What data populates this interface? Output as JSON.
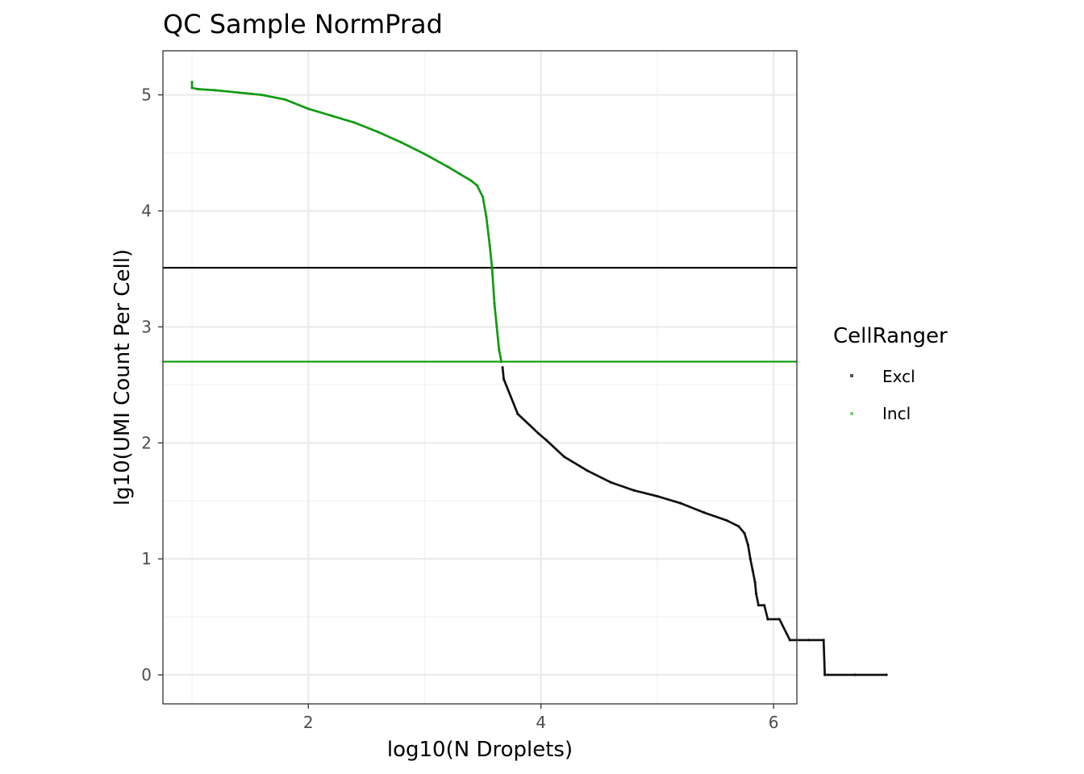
{
  "chart_data": {
    "type": "scatter",
    "title": "QC Sample NormPrad",
    "xlabel": "log10(N Droplets)",
    "ylabel": "lg10(UMI Count Per Cell)",
    "xlim": [
      0.75,
      6.2
    ],
    "ylim": [
      -0.25,
      5.38
    ],
    "x_ticks": [
      2,
      4,
      6
    ],
    "y_ticks": [
      0,
      1,
      2,
      3,
      4,
      5
    ],
    "grid": true,
    "legend": {
      "title": "CellRanger",
      "placement": "right",
      "entries": [
        {
          "label": "Excl",
          "color": "#555555"
        },
        {
          "label": "Incl",
          "color": "#7fd07f"
        }
      ]
    },
    "hlines": [
      {
        "y": 3.51,
        "color": "#000000"
      },
      {
        "y": 2.7,
        "color": "#0a9a0a"
      }
    ],
    "series": [
      {
        "name": "Incl",
        "color": "#129a12",
        "points": [
          [
            1.0,
            5.11
          ],
          [
            1.0,
            5.06
          ],
          [
            1.05,
            5.05
          ],
          [
            1.2,
            5.04
          ],
          [
            1.4,
            5.02
          ],
          [
            1.6,
            5.0
          ],
          [
            1.8,
            4.96
          ],
          [
            2.0,
            4.88
          ],
          [
            2.2,
            4.82
          ],
          [
            2.4,
            4.76
          ],
          [
            2.6,
            4.68
          ],
          [
            2.8,
            4.59
          ],
          [
            3.0,
            4.49
          ],
          [
            3.2,
            4.38
          ],
          [
            3.3,
            4.32
          ],
          [
            3.4,
            4.26
          ],
          [
            3.45,
            4.22
          ],
          [
            3.5,
            4.12
          ],
          [
            3.53,
            3.95
          ],
          [
            3.56,
            3.7
          ],
          [
            3.58,
            3.5
          ],
          [
            3.6,
            3.2
          ],
          [
            3.62,
            3.0
          ],
          [
            3.64,
            2.8
          ],
          [
            3.66,
            2.7
          ]
        ]
      },
      {
        "name": "Excl",
        "color": "#111111",
        "points": [
          [
            3.67,
            2.65
          ],
          [
            3.68,
            2.55
          ],
          [
            3.8,
            2.25
          ],
          [
            3.98,
            2.08
          ],
          [
            4.05,
            2.02
          ],
          [
            4.2,
            1.88
          ],
          [
            4.4,
            1.76
          ],
          [
            4.6,
            1.66
          ],
          [
            4.8,
            1.59
          ],
          [
            5.0,
            1.54
          ],
          [
            5.2,
            1.48
          ],
          [
            5.4,
            1.4
          ],
          [
            5.6,
            1.33
          ],
          [
            5.7,
            1.28
          ],
          [
            5.75,
            1.22
          ],
          [
            5.78,
            1.12
          ],
          [
            5.8,
            1.0
          ],
          [
            5.82,
            0.9
          ],
          [
            5.84,
            0.8
          ],
          [
            5.85,
            0.7
          ],
          [
            5.87,
            0.6
          ],
          [
            5.92,
            0.6
          ],
          [
            5.95,
            0.48
          ],
          [
            6.05,
            0.48
          ],
          [
            6.14,
            0.3
          ],
          [
            6.3,
            0.3
          ],
          [
            6.43,
            0.3
          ],
          [
            6.44,
            0.0
          ],
          [
            6.7,
            0.0
          ],
          [
            6.97,
            0.0
          ]
        ]
      }
    ]
  }
}
